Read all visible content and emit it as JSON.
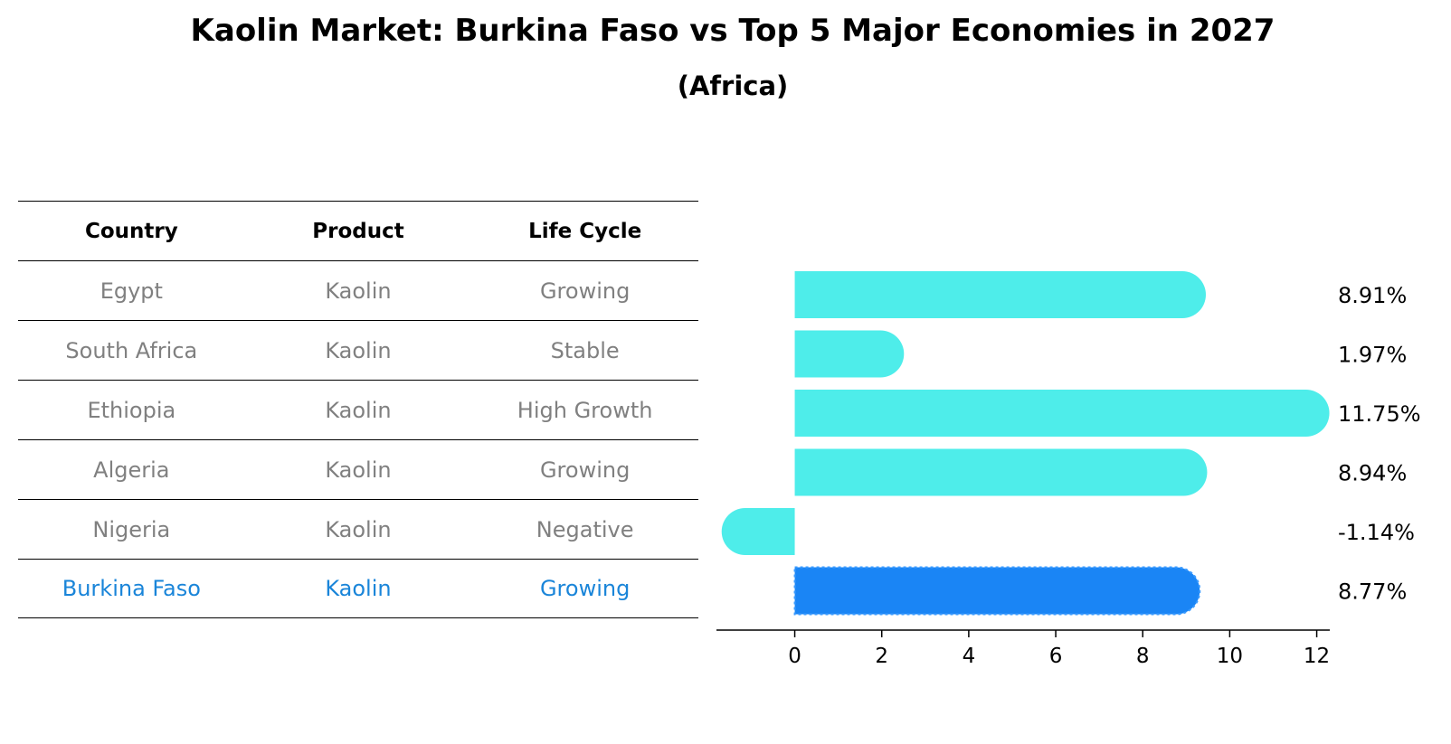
{
  "title": "Kaolin Market: Burkina Faso vs Top 5 Major Economies in 2027",
  "subtitle": "(Africa)",
  "table": {
    "headers": [
      "Country",
      "Product",
      "Life Cycle"
    ],
    "rows": [
      [
        "Egypt",
        "Kaolin",
        "Growing"
      ],
      [
        "South Africa",
        "Kaolin",
        "Stable"
      ],
      [
        "Ethiopia",
        "Kaolin",
        "High Growth"
      ],
      [
        "Algeria",
        "Kaolin",
        "Growing"
      ],
      [
        "Nigeria",
        "Kaolin",
        "Negative"
      ],
      [
        "Burkina Faso",
        "Kaolin",
        "Growing"
      ]
    ]
  },
  "colors": {
    "bar": "#4eedea",
    "highlight": "#1a85f5",
    "highlight_text": "#1a85d9",
    "muted_text": "#808080"
  },
  "chart_data": {
    "type": "bar",
    "orientation": "horizontal",
    "categories": [
      "Egypt",
      "South Africa",
      "Ethiopia",
      "Algeria",
      "Nigeria",
      "Burkina Faso"
    ],
    "values": [
      8.91,
      1.97,
      11.75,
      8.94,
      -1.14,
      8.77
    ],
    "labels": [
      "8.91%",
      "1.97%",
      "11.75%",
      "8.94%",
      "-1.14%",
      "8.77%"
    ],
    "highlight_index": 5,
    "xlim": [
      -1.8,
      12.3
    ],
    "xticks": [
      0,
      2,
      4,
      6,
      8,
      10,
      12
    ],
    "xtick_labels": [
      "0",
      "2",
      "4",
      "6",
      "8",
      "10",
      "12"
    ]
  }
}
